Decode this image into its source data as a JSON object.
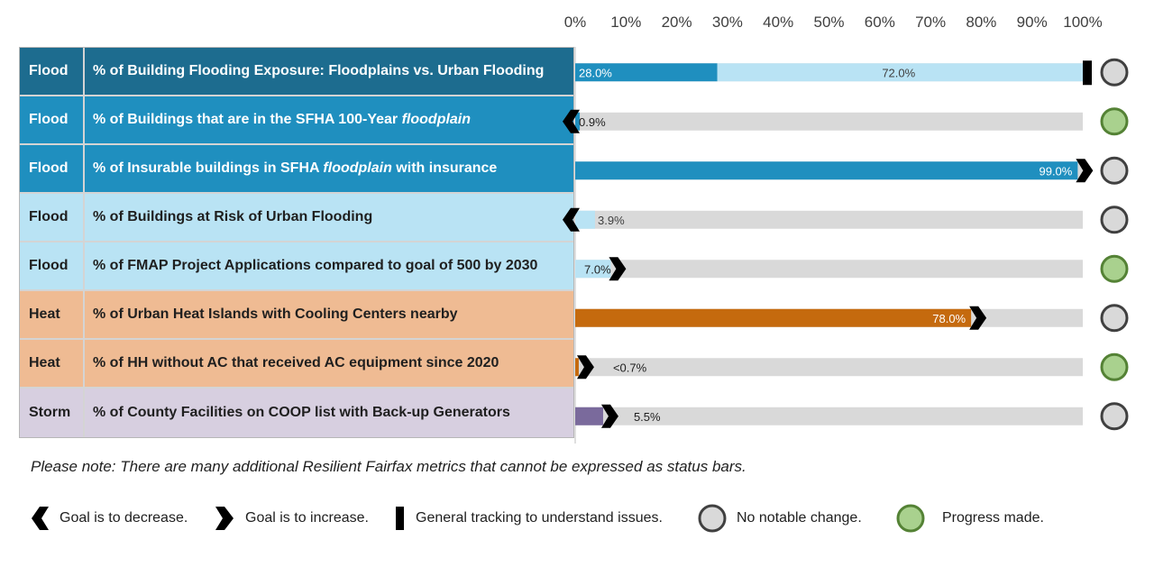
{
  "colors": {
    "flood_dark": "#1d6c8f",
    "flood_mid": "#1f8fbf",
    "flood_light": "#b9e3f4",
    "heat": "#c56a0e",
    "heat_light": "#efbb93",
    "storm": "#7a6a9c",
    "storm_light": "#d7cfe0",
    "track": "#d9d9d9",
    "no_change": "#d9d9d9",
    "progress": "#a9d18e",
    "progress_border": "#548235",
    "no_change_border": "#404040"
  },
  "chart_data": {
    "type": "bar",
    "orientation": "horizontal",
    "xlim": [
      0,
      100
    ],
    "axis_ticks": [
      "0%",
      "10%",
      "20%",
      "30%",
      "40%",
      "50%",
      "60%",
      "70%",
      "80%",
      "90%",
      "100%"
    ],
    "rows": [
      {
        "category": "Flood",
        "metric": "% of Building Flooding Exposure: Floodplains vs. Urban Flooding",
        "metric_italic": "",
        "segments": [
          {
            "value": 28.0,
            "label": "28.0%",
            "color": "#1f8fbf"
          },
          {
            "value": 72.0,
            "label": "72.0%",
            "color": "#b9e3f4"
          }
        ],
        "goal": "track",
        "status": "no_change",
        "row_style": "flood_dark"
      },
      {
        "category": "Flood",
        "metric": "% of Buildings that are in the SFHA 100-Year ",
        "metric_italic": "floodplain",
        "segments": [
          {
            "value": 0.9,
            "label": "0.9%",
            "color": "#1f8fbf"
          }
        ],
        "goal": "decrease",
        "status": "progress",
        "row_style": "flood_mid"
      },
      {
        "category": "Flood",
        "metric": "% of Insurable buildings in SFHA ",
        "metric_italic": "floodplain",
        "metric_suffix": " with insurance",
        "segments": [
          {
            "value": 99.0,
            "label": "99.0%",
            "color": "#1f8fbf"
          }
        ],
        "goal": "increase",
        "status": "no_change",
        "row_style": "flood_mid"
      },
      {
        "category": "Flood",
        "metric": "% of Buildings at Risk of Urban Flooding",
        "metric_italic": "",
        "segments": [
          {
            "value": 3.9,
            "label": "3.9%",
            "color": "#b9e3f4"
          }
        ],
        "goal": "decrease",
        "status": "no_change",
        "row_style": "flood_light"
      },
      {
        "category": "Flood",
        "metric": "% of FMAP Project Applications compared to goal of 500 by 2030",
        "metric_italic": "",
        "segments": [
          {
            "value": 7.0,
            "label": "7.0%",
            "color": "#b9e3f4"
          }
        ],
        "goal": "increase",
        "status": "progress",
        "row_style": "flood_light"
      },
      {
        "category": "Heat",
        "metric": "% of Urban Heat Islands with Cooling Centers nearby",
        "metric_italic": "",
        "segments": [
          {
            "value": 78.0,
            "label": "78.0%",
            "color": "#c56a0e"
          }
        ],
        "goal": "increase",
        "status": "no_change",
        "row_style": "heat"
      },
      {
        "category": "Heat",
        "metric": "% of HH without AC that received AC equipment since 2020",
        "metric_italic": "",
        "segments": [
          {
            "value": 0.7,
            "label": "<0.7%",
            "color": "#c56a0e"
          }
        ],
        "goal": "increase",
        "status": "progress",
        "row_style": "heat"
      },
      {
        "category": "Storm",
        "metric": "% of County Facilities on COOP list with Back-up Generators",
        "metric_italic": "",
        "segments": [
          {
            "value": 5.5,
            "label": "5.5%",
            "color": "#7a6a9c"
          }
        ],
        "goal": "increase",
        "status": "no_change",
        "row_style": "storm"
      }
    ]
  },
  "note": "Please note: There are many additional Resilient Fairfax metrics that cannot be expressed as status bars.",
  "legend": [
    {
      "symbol": "decrease",
      "label": "Goal is to decrease."
    },
    {
      "symbol": "increase",
      "label": "Goal is to increase."
    },
    {
      "symbol": "track",
      "label": "General tracking to understand issues."
    },
    {
      "symbol": "no_change",
      "label": "No notable change."
    },
    {
      "symbol": "progress",
      "label": "Progress made."
    }
  ]
}
